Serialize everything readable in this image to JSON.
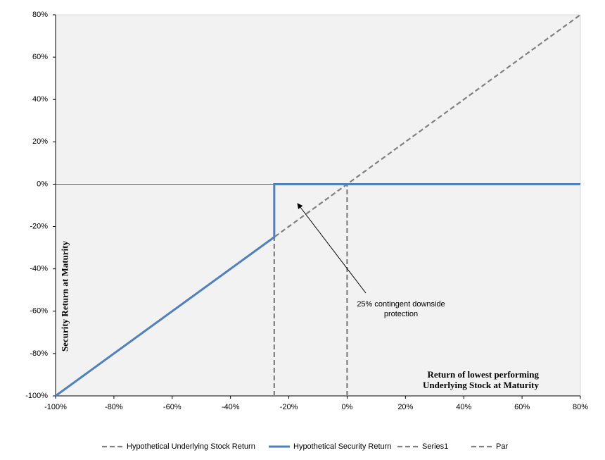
{
  "chart_data": {
    "type": "line",
    "x_label": "Return of lowest performing Underlying Stock at Maturity",
    "y_label": "Security Return at Maturity",
    "annotation": "25% contingent downside protection",
    "xlim": [
      -100,
      80
    ],
    "ylim": [
      -100,
      80
    ],
    "xticks": [
      {
        "value": -100,
        "label": "-100%"
      },
      {
        "value": -80,
        "label": "-80%"
      },
      {
        "value": -60,
        "label": "-60%"
      },
      {
        "value": -40,
        "label": "-40%"
      },
      {
        "value": -20,
        "label": "-20%"
      },
      {
        "value": 0,
        "label": "0%"
      },
      {
        "value": 20,
        "label": "20%"
      },
      {
        "value": 40,
        "label": "40%"
      },
      {
        "value": 60,
        "label": "60%"
      },
      {
        "value": 80,
        "label": "80%"
      }
    ],
    "yticks": [
      {
        "value": -100,
        "label": "-100%"
      },
      {
        "value": -80,
        "label": "-80%"
      },
      {
        "value": -60,
        "label": "-60%"
      },
      {
        "value": -40,
        "label": "-40%"
      },
      {
        "value": -20,
        "label": "-20%"
      },
      {
        "value": 0,
        "label": "0%"
      },
      {
        "value": 20,
        "label": "20%"
      },
      {
        "value": 40,
        "label": "40%"
      },
      {
        "value": 60,
        "label": "60%"
      },
      {
        "value": 80,
        "label": "80%"
      }
    ],
    "series": [
      {
        "name": "Hypothetical Underlying Stock Return",
        "color": "#808080",
        "dashed": true,
        "x": [
          -100,
          80
        ],
        "values": [
          -100,
          80
        ]
      },
      {
        "name": "Hypothetical Security Return",
        "color": "#4f81bd",
        "dashed": false,
        "x": [
          -100,
          -25,
          -25,
          80
        ],
        "values": [
          -100,
          -25,
          0,
          0
        ]
      },
      {
        "name": "Series1",
        "color": "#808080",
        "dashed": true,
        "x": [
          -25,
          -25
        ],
        "values": [
          -100,
          -25
        ]
      },
      {
        "name": "Par",
        "color": "#808080",
        "dashed": true,
        "x": [
          0,
          0
        ],
        "values": [
          -100,
          0
        ]
      }
    ]
  }
}
